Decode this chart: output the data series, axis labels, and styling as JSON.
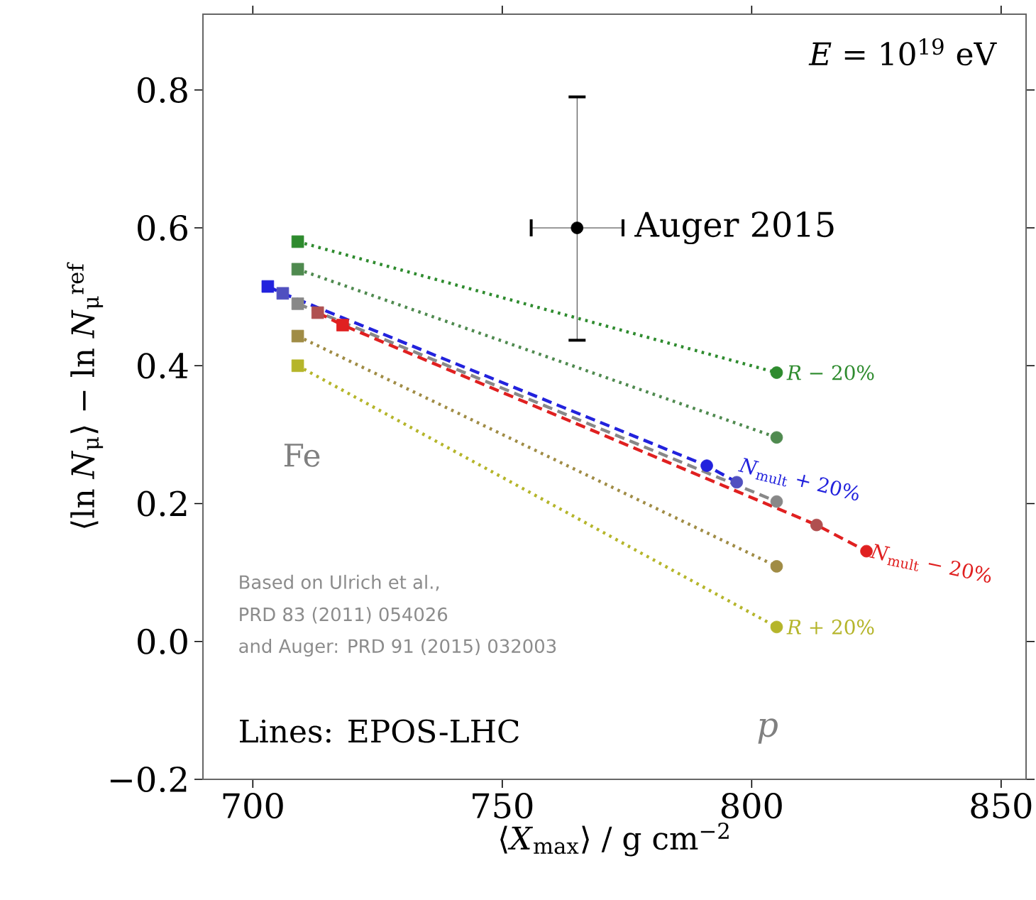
{
  "chart_data": {
    "type": "line",
    "xlabel": "⟨*X*$_{max}$⟩ / g cm$^{−2}$",
    "ylabel": "⟨ln *N*$_{μ}$⟩ − ln *N*$_{μ}$$^{ref}$",
    "xlim": [
      690,
      855
    ],
    "ylim": [
      -0.2,
      0.91
    ],
    "xticks": [
      700,
      750,
      800,
      850
    ],
    "yticks": [
      {
        "value": -0.2,
        "label": "−0.2"
      },
      {
        "value": 0,
        "label": "0.0"
      },
      0.2,
      0.4,
      0.6,
      0.8
    ],
    "grid": false,
    "annotations": [
      "*E* = 10$^{19}$ eV",
      "Fe",
      "*p*",
      "Based on Ulrich et al.,",
      "PRD 83 (2011) 054026",
      "and Auger: PRD 91 (2015) 032003",
      "Lines: EPOS-LHC"
    ],
    "series": [
      {
        "name": "*R* − 20%",
        "line_style": "dotted",
        "marker": "none",
        "color": "#2e8b2e",
        "x": [
          709,
          805
        ],
        "values": [
          0.58,
          0.39
        ]
      },
      {
        "line_style": "dotted",
        "marker": "none",
        "color": "#4f8a4f",
        "x": [
          709,
          805
        ],
        "values": [
          0.54,
          0.296
        ]
      },
      {
        "line_style": "dashed",
        "marker": "none",
        "color": "#888888",
        "x": [
          709,
          805
        ],
        "values": [
          0.49,
          0.203
        ]
      },
      {
        "line_style": "dotted",
        "marker": "none",
        "color": "#a08c45",
        "x": [
          709,
          805
        ],
        "values": [
          0.443,
          0.109
        ]
      },
      {
        "name": "*R* + 20%",
        "line_style": "dotted",
        "marker": "none",
        "color": "#b5b52a",
        "x": [
          709,
          805
        ],
        "values": [
          0.4,
          0.021
        ]
      },
      {
        "name": "*N*$_{mult}$ + 20%",
        "line_style": "dashed",
        "marker": "none",
        "color": "#2222dd",
        "x": [
          703,
          706,
          791,
          797
        ],
        "values": [
          0.515,
          0.505,
          0.255,
          0.231
        ]
      },
      {
        "name": "*N*$_{mult}$ − 20%",
        "line_style": "dashed",
        "marker": "none",
        "color": "#e02020",
        "x": [
          713,
          718,
          813,
          823
        ],
        "values": [
          0.477,
          0.459,
          0.169,
          0.131
        ]
      },
      {
        "type": "scatter",
        "marker": "square",
        "x": [
          709,
          709,
          709,
          709,
          709,
          703,
          706,
          713,
          718
        ],
        "values": [
          0.58,
          0.54,
          0.49,
          0.443,
          0.4,
          0.515,
          0.505,
          0.477,
          0.459
        ],
        "colors": [
          "#2e8b2e",
          "#4f8a4f",
          "#888888",
          "#a08c45",
          "#b5b52a",
          "#2222dd",
          "#5050c0",
          "#b05050",
          "#e02020"
        ]
      },
      {
        "type": "scatter",
        "marker": "circle",
        "x": [
          805,
          805,
          805,
          805,
          805,
          791,
          797,
          813,
          823
        ],
        "values": [
          0.39,
          0.296,
          0.203,
          0.109,
          0.021,
          0.255,
          0.231,
          0.169,
          0.131
        ],
        "colors": [
          "#2e8b2e",
          "#4f8a4f",
          "#888888",
          "#a08c45",
          "#b5b52a",
          "#2222dd",
          "#5050c0",
          "#b05050",
          "#e02020"
        ]
      },
      {
        "name": "Auger 2015",
        "type": "scatter",
        "marker": "circle",
        "color": "#000000",
        "x": [
          765
        ],
        "values": [
          0.6
        ],
        "errors": [
          [
            0.437,
            0.79
          ]
        ],
        "xerrors": [
          [
            755.8,
            774.2
          ]
        ]
      }
    ]
  }
}
